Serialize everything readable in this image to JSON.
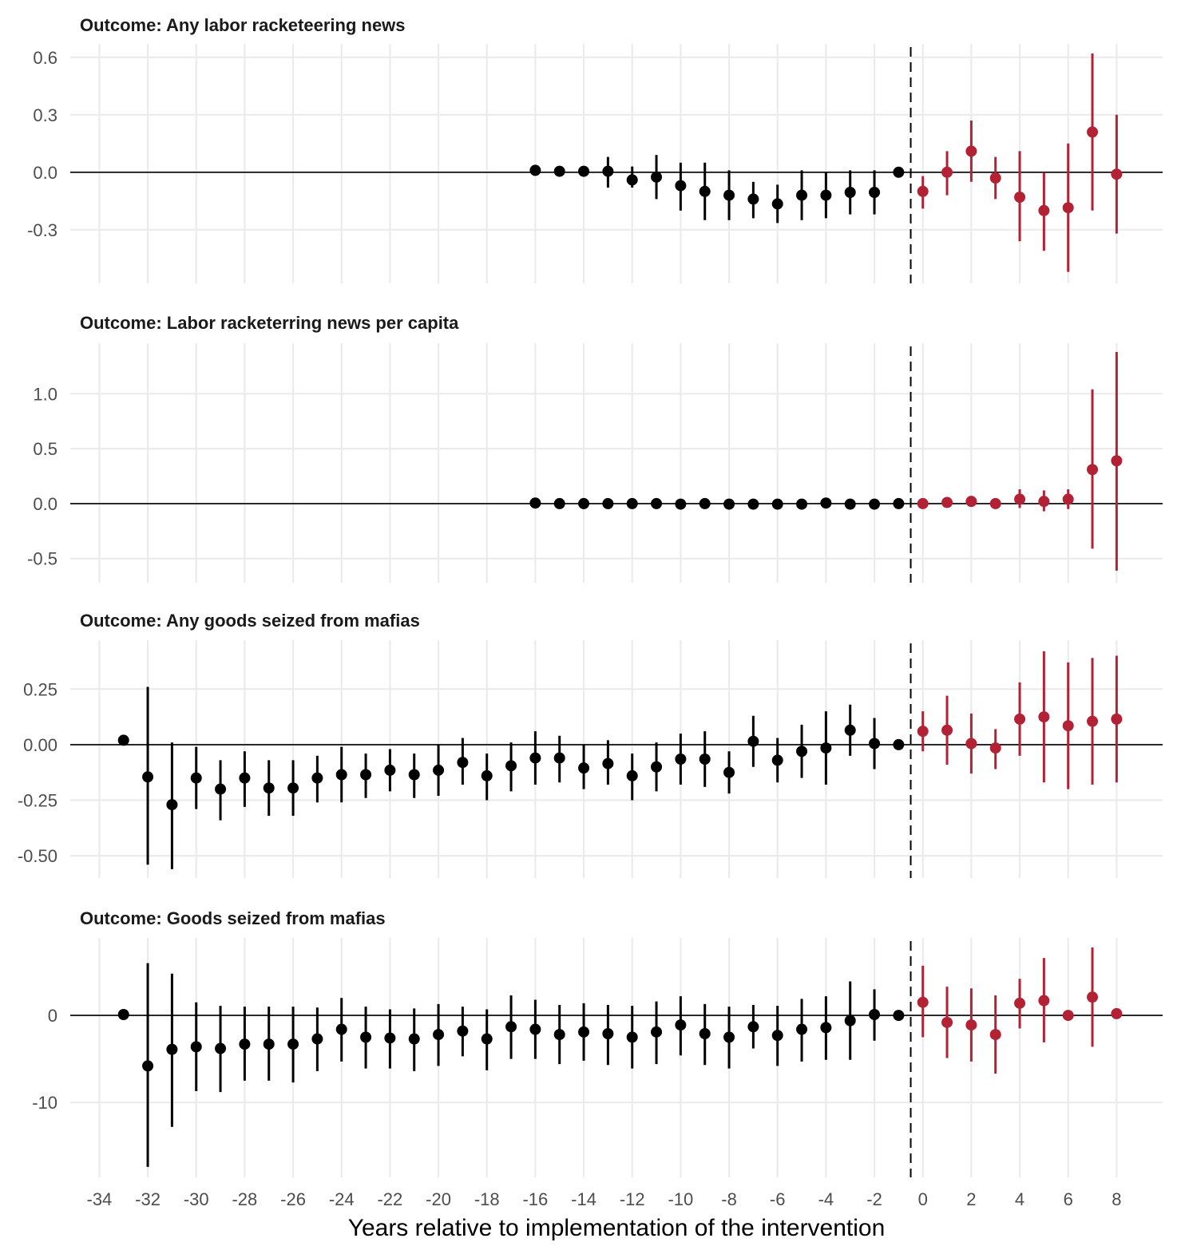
{
  "chart_data": {
    "type": "scatter",
    "subtype": "event-study coefficient plot with confidence intervals (faceted, 4 panels)",
    "xlabel": "Years relative to implementation of the intervention",
    "x_ticks": [
      -34,
      -32,
      -30,
      -28,
      -26,
      -24,
      -22,
      -20,
      -18,
      -16,
      -14,
      -12,
      -10,
      -8,
      -6,
      -4,
      -2,
      0,
      2,
      4,
      6,
      8
    ],
    "xlim": [
      -35.2,
      9.9
    ],
    "intervention_line_x": -0.5,
    "grid": true,
    "colors": {
      "pre": "#000000",
      "post": "#B22234"
    },
    "point_format": [
      "x",
      "estimate",
      "ci_low",
      "ci_high"
    ],
    "panels": [
      {
        "title": "Outcome: Any labor racketeering news",
        "ylim": [
          -0.58,
          0.67
        ],
        "y_ticks": [
          0.6,
          0.3,
          0.0,
          -0.3
        ],
        "y_tick_labels": [
          "0.6",
          "0.3",
          "0.0",
          "-0.3"
        ],
        "pre": [
          [
            -16,
            0.01,
            0.01,
            0.01
          ],
          [
            -15,
            0.005,
            0.005,
            0.005
          ],
          [
            -14,
            0.005,
            0.005,
            0.005
          ],
          [
            -13,
            0.005,
            -0.08,
            0.08
          ],
          [
            -12,
            -0.04,
            -0.08,
            0.03
          ],
          [
            -11,
            -0.025,
            -0.14,
            0.09
          ],
          [
            -10,
            -0.07,
            -0.2,
            0.05
          ],
          [
            -9,
            -0.1,
            -0.25,
            0.05
          ],
          [
            -8,
            -0.12,
            -0.25,
            0.01
          ],
          [
            -7,
            -0.14,
            -0.24,
            -0.05
          ],
          [
            -6,
            -0.165,
            -0.265,
            -0.065
          ],
          [
            -5,
            -0.12,
            -0.25,
            0.01
          ],
          [
            -4,
            -0.12,
            -0.24,
            0.0
          ],
          [
            -3,
            -0.105,
            -0.22,
            0.01
          ],
          [
            -2,
            -0.105,
            -0.22,
            0.01
          ],
          [
            -1,
            0,
            0,
            0
          ]
        ],
        "post": [
          [
            0,
            -0.1,
            -0.19,
            -0.02
          ],
          [
            1,
            0,
            -0.12,
            0.11
          ],
          [
            2,
            0.11,
            -0.05,
            0.27
          ],
          [
            3,
            -0.03,
            -0.14,
            0.08
          ],
          [
            4,
            -0.13,
            -0.36,
            0.11
          ],
          [
            5,
            -0.2,
            -0.41,
            0.0
          ],
          [
            6,
            -0.185,
            -0.52,
            0.15
          ],
          [
            7,
            0.21,
            -0.2,
            0.62
          ],
          [
            8,
            -0.01,
            -0.32,
            0.3
          ]
        ]
      },
      {
        "title": "Outcome: Labor racketerring news per capita",
        "ylim": [
          -0.72,
          1.46
        ],
        "y_ticks": [
          1.0,
          0.5,
          0.0,
          -0.5
        ],
        "y_tick_labels": [
          "1.0",
          "0.5",
          "0.0",
          "-0.5"
        ],
        "pre": [
          [
            -16,
            0.005,
            0.005,
            0.005
          ],
          [
            -15,
            0.0,
            0.0,
            0.0
          ],
          [
            -14,
            0.0,
            0.0,
            0.0
          ],
          [
            -13,
            0.0,
            0.0,
            0.0
          ],
          [
            -12,
            0.0,
            0.0,
            0.0
          ],
          [
            -11,
            0.0,
            0.0,
            0.0
          ],
          [
            -10,
            -0.005,
            -0.005,
            -0.005
          ],
          [
            -9,
            0.0,
            0.0,
            0.0
          ],
          [
            -8,
            -0.005,
            -0.005,
            -0.005
          ],
          [
            -7,
            -0.005,
            -0.005,
            -0.005
          ],
          [
            -6,
            -0.005,
            -0.005,
            -0.005
          ],
          [
            -5,
            -0.005,
            -0.005,
            -0.005
          ],
          [
            -4,
            0.005,
            0.005,
            0.005
          ],
          [
            -3,
            -0.005,
            -0.005,
            -0.005
          ],
          [
            -2,
            -0.005,
            -0.005,
            -0.005
          ],
          [
            -1,
            0,
            0,
            0
          ]
        ],
        "post": [
          [
            0,
            0.0,
            0.0,
            0.0
          ],
          [
            1,
            0.01,
            0.01,
            0.01
          ],
          [
            2,
            0.02,
            0.02,
            0.02
          ],
          [
            3,
            0.0,
            0.0,
            0.0
          ],
          [
            4,
            0.04,
            -0.04,
            0.13
          ],
          [
            5,
            0.02,
            -0.07,
            0.12
          ],
          [
            6,
            0.04,
            -0.05,
            0.13
          ],
          [
            7,
            0.31,
            -0.41,
            1.04
          ],
          [
            8,
            0.39,
            -0.61,
            1.38
          ]
        ]
      },
      {
        "title": "Outcome: Any goods seized from mafias",
        "ylim": [
          -0.6,
          0.47
        ],
        "y_ticks": [
          0.25,
          0.0,
          -0.25,
          -0.5
        ],
        "y_tick_labels": [
          "0.25",
          "0.00",
          "-0.25",
          "-0.50"
        ],
        "pre": [
          [
            -33,
            0.02,
            0.02,
            0.02
          ],
          [
            -32,
            -0.145,
            -0.54,
            0.26
          ],
          [
            -31,
            -0.27,
            -0.56,
            0.01
          ],
          [
            -30,
            -0.15,
            -0.29,
            -0.01
          ],
          [
            -29,
            -0.2,
            -0.34,
            -0.07
          ],
          [
            -28,
            -0.15,
            -0.28,
            -0.03
          ],
          [
            -27,
            -0.195,
            -0.32,
            -0.07
          ],
          [
            -26,
            -0.195,
            -0.32,
            -0.07
          ],
          [
            -25,
            -0.15,
            -0.26,
            -0.05
          ],
          [
            -24,
            -0.135,
            -0.26,
            -0.01
          ],
          [
            -23,
            -0.135,
            -0.24,
            -0.04
          ],
          [
            -22,
            -0.115,
            -0.21,
            -0.02
          ],
          [
            -21,
            -0.135,
            -0.24,
            -0.04
          ],
          [
            -20,
            -0.115,
            -0.23,
            0.0
          ],
          [
            -19,
            -0.08,
            -0.18,
            0.03
          ],
          [
            -18,
            -0.14,
            -0.25,
            -0.04
          ],
          [
            -17,
            -0.095,
            -0.21,
            0.01
          ],
          [
            -16,
            -0.06,
            -0.18,
            0.06
          ],
          [
            -15,
            -0.06,
            -0.17,
            0.04
          ],
          [
            -14,
            -0.105,
            -0.2,
            0.0
          ],
          [
            -13,
            -0.085,
            -0.18,
            0.02
          ],
          [
            -12,
            -0.14,
            -0.25,
            -0.04
          ],
          [
            -11,
            -0.1,
            -0.21,
            0.01
          ],
          [
            -10,
            -0.065,
            -0.18,
            0.05
          ],
          [
            -9,
            -0.065,
            -0.19,
            0.06
          ],
          [
            -8,
            -0.125,
            -0.22,
            -0.03
          ],
          [
            -7,
            0.015,
            -0.1,
            0.13
          ],
          [
            -6,
            -0.07,
            -0.17,
            0.03
          ],
          [
            -5,
            -0.03,
            -0.15,
            0.09
          ],
          [
            -4,
            -0.015,
            -0.18,
            0.15
          ],
          [
            -3,
            0.065,
            -0.05,
            0.18
          ],
          [
            -2,
            0.005,
            -0.11,
            0.12
          ],
          [
            -1,
            0,
            0,
            0
          ]
        ],
        "post": [
          [
            0,
            0.06,
            -0.03,
            0.15
          ],
          [
            1,
            0.065,
            -0.09,
            0.22
          ],
          [
            2,
            0.005,
            -0.13,
            0.14
          ],
          [
            3,
            -0.015,
            -0.11,
            0.07
          ],
          [
            4,
            0.115,
            -0.05,
            0.28
          ],
          [
            5,
            0.125,
            -0.17,
            0.42
          ],
          [
            6,
            0.085,
            -0.2,
            0.37
          ],
          [
            7,
            0.105,
            -0.18,
            0.39
          ],
          [
            8,
            0.115,
            -0.17,
            0.4
          ]
        ]
      },
      {
        "title": "Outcome: Goods seized from mafias",
        "ylim": [
          -18.6,
          8.9
        ],
        "y_ticks": [
          0,
          -10
        ],
        "y_tick_labels": [
          "0",
          "-10"
        ],
        "pre": [
          [
            -33,
            0.1,
            0.1,
            0.1
          ],
          [
            -32,
            -5.8,
            -17.4,
            6.0
          ],
          [
            -31,
            -3.9,
            -12.8,
            4.8
          ],
          [
            -30,
            -3.6,
            -8.7,
            1.5
          ],
          [
            -29,
            -3.8,
            -8.8,
            1.1
          ],
          [
            -28,
            -3.3,
            -7.5,
            1.0
          ],
          [
            -27,
            -3.3,
            -7.5,
            1.0
          ],
          [
            -26,
            -3.3,
            -7.7,
            1.0
          ],
          [
            -25,
            -2.7,
            -6.4,
            0.9
          ],
          [
            -24,
            -1.6,
            -5.3,
            2.0
          ],
          [
            -23,
            -2.5,
            -6.1,
            1.0
          ],
          [
            -22,
            -2.6,
            -6.1,
            0.7
          ],
          [
            -21,
            -2.7,
            -6.4,
            0.8
          ],
          [
            -20,
            -2.2,
            -5.8,
            1.3
          ],
          [
            -19,
            -1.8,
            -4.7,
            1.0
          ],
          [
            -18,
            -2.7,
            -6.3,
            0.7
          ],
          [
            -17,
            -1.3,
            -5.0,
            2.3
          ],
          [
            -16,
            -1.6,
            -5.0,
            1.8
          ],
          [
            -15,
            -2.2,
            -5.6,
            1.2
          ],
          [
            -14,
            -1.9,
            -5.2,
            1.4
          ],
          [
            -13,
            -2.1,
            -5.7,
            1.2
          ],
          [
            -12,
            -2.5,
            -6.1,
            1.1
          ],
          [
            -11,
            -1.9,
            -5.6,
            1.6
          ],
          [
            -10,
            -1.1,
            -4.6,
            2.2
          ],
          [
            -9,
            -2.1,
            -5.7,
            1.3
          ],
          [
            -8,
            -2.5,
            -6.1,
            1.0
          ],
          [
            -7,
            -1.3,
            -3.8,
            1.2
          ],
          [
            -6,
            -2.3,
            -5.8,
            1.1
          ],
          [
            -5,
            -1.6,
            -5.3,
            1.9
          ],
          [
            -4,
            -1.4,
            -5.1,
            2.2
          ],
          [
            -3,
            -0.6,
            -5.1,
            3.9
          ],
          [
            -2,
            0.1,
            -2.9,
            3.0
          ],
          [
            -1,
            0,
            0,
            0
          ]
        ],
        "post": [
          [
            0,
            1.5,
            -2.5,
            5.7
          ],
          [
            1,
            -0.8,
            -4.9,
            3.3
          ],
          [
            2,
            -1.1,
            -5.3,
            3.1
          ],
          [
            3,
            -2.2,
            -6.7,
            2.3
          ],
          [
            4,
            1.4,
            -1.5,
            4.2
          ],
          [
            5,
            1.7,
            -3.1,
            6.6
          ],
          [
            6,
            0.0,
            0.0,
            0.0
          ],
          [
            7,
            2.1,
            -3.6,
            7.8
          ],
          [
            8,
            0.2,
            0.2,
            0.2
          ]
        ]
      }
    ]
  }
}
